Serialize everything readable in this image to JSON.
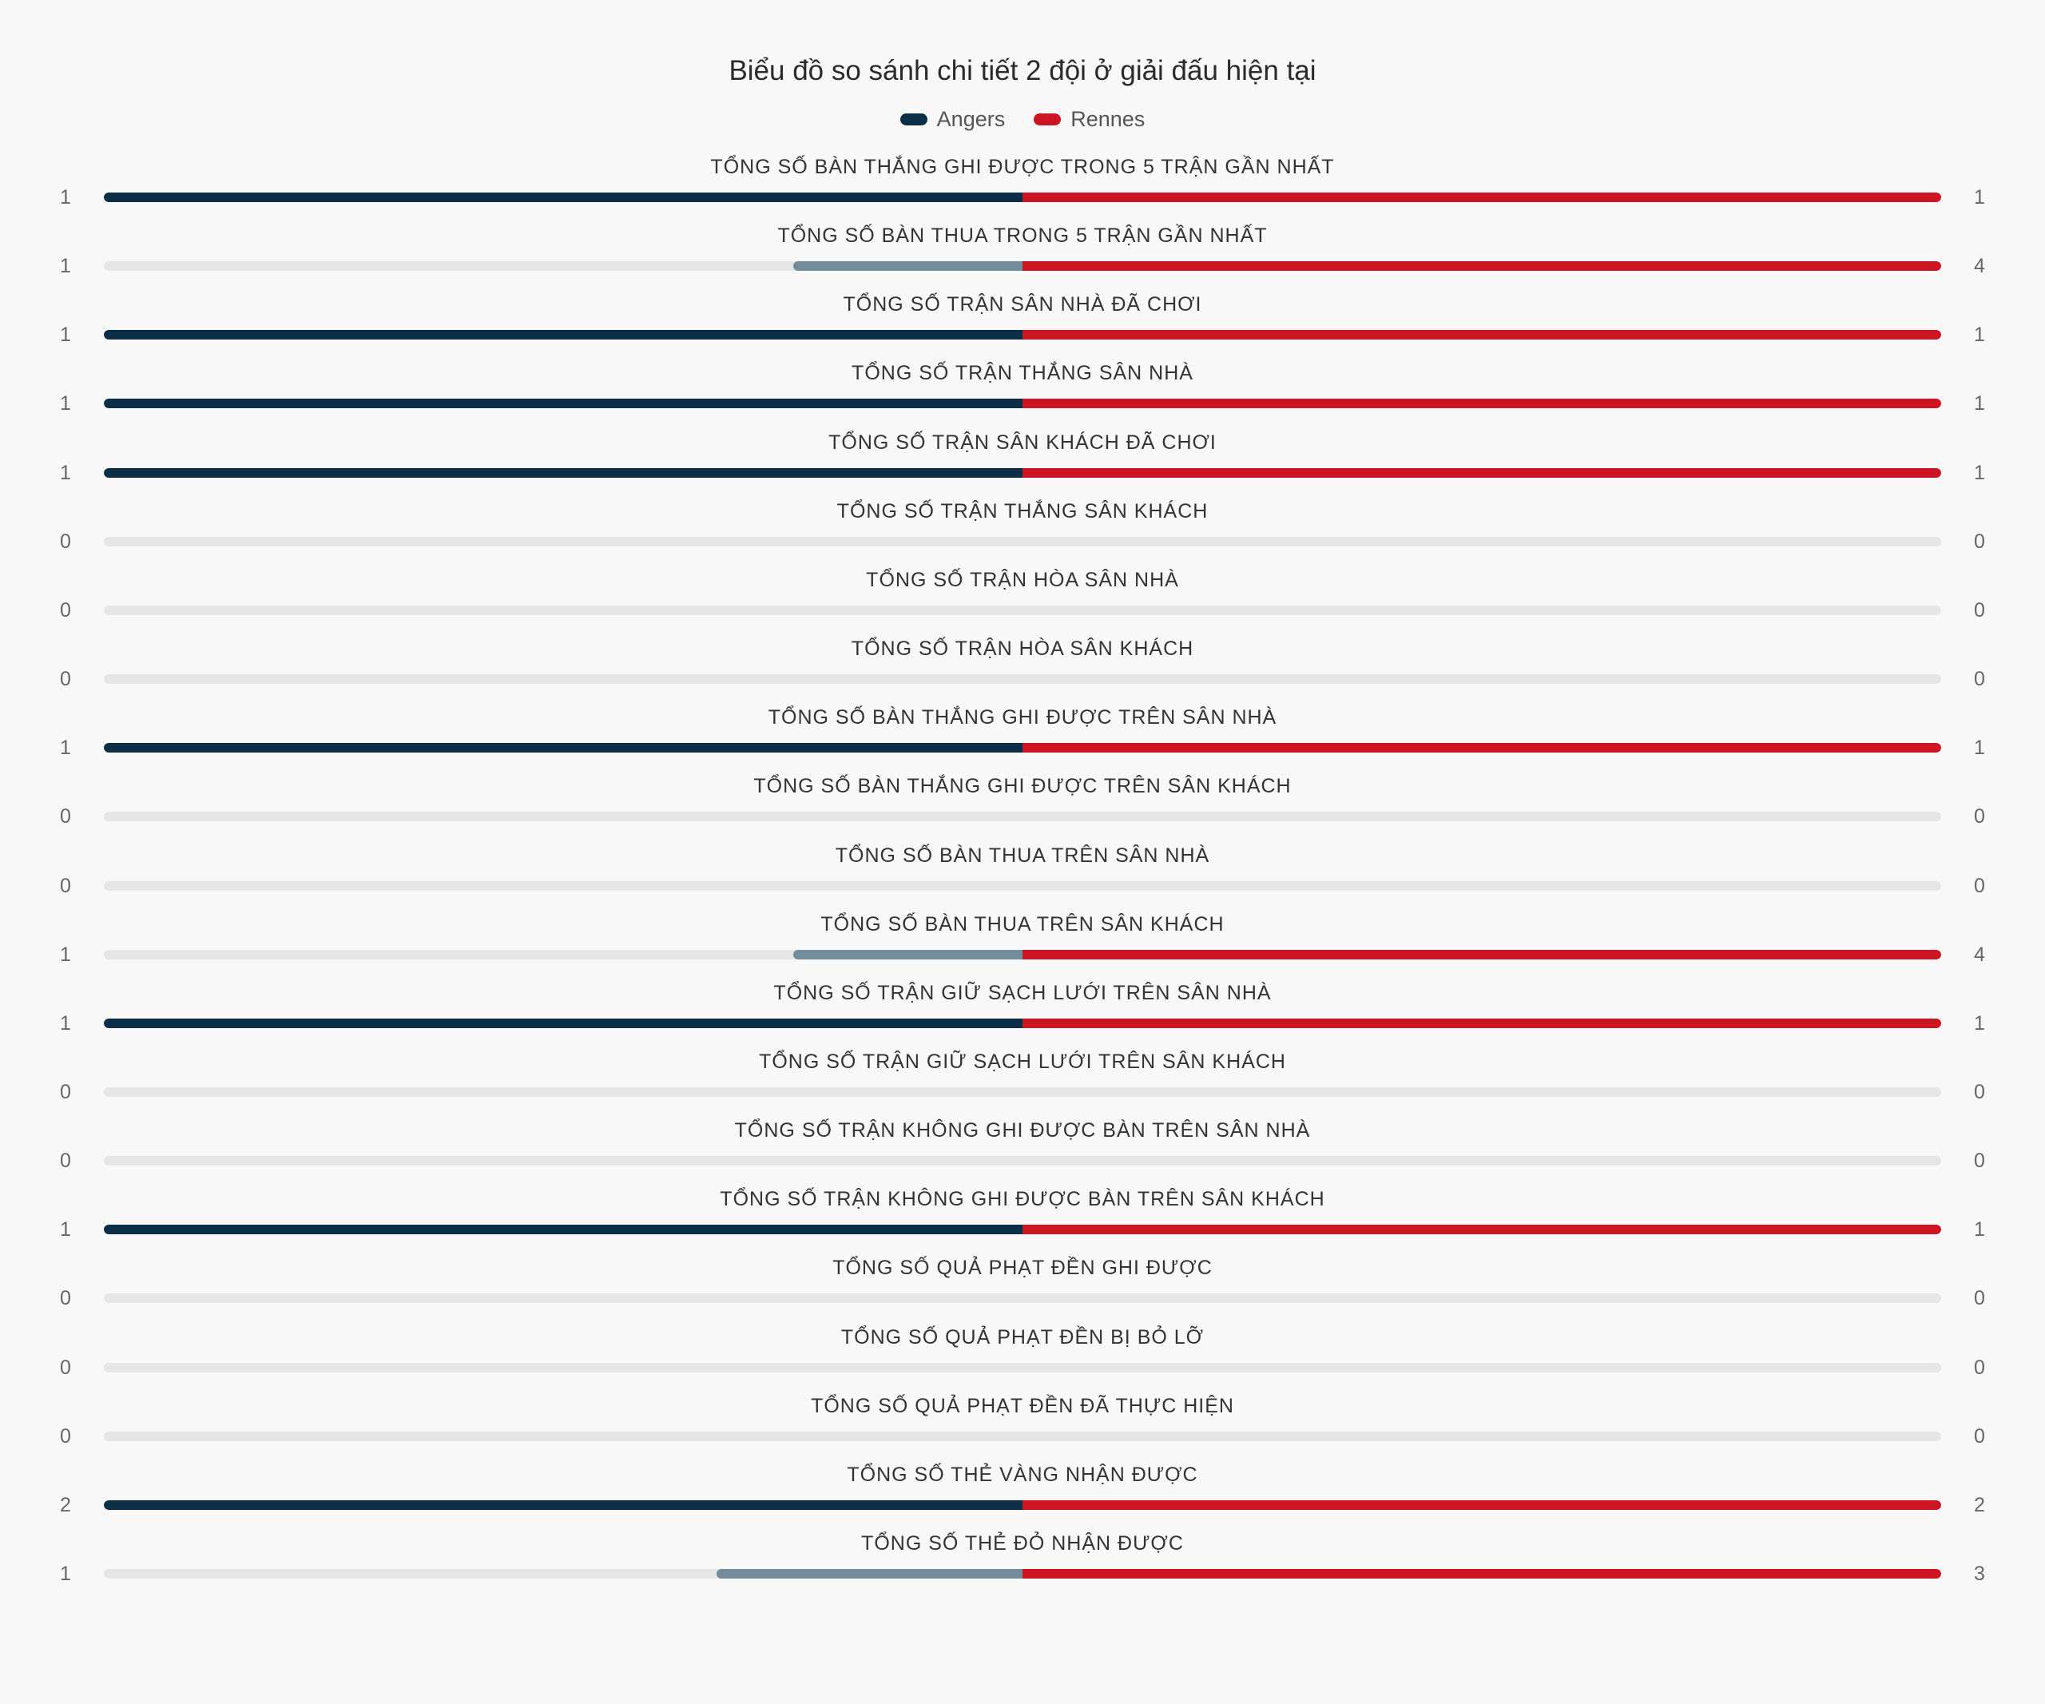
{
  "title": "Biểu đồ so sánh chi tiết 2 đội ở giải đấu hiện tại",
  "chart_data": {
    "type": "bar",
    "title": "Biểu đồ so sánh chi tiết 2 đội ở giải đấu hiện tại",
    "legend_position": "top-center",
    "series": [
      {
        "name": "Angers",
        "color": "#0b2e47",
        "dim_color": "#738c9b"
      },
      {
        "name": "Rennes",
        "color": "#cc1422"
      }
    ],
    "rows": [
      {
        "label": "TỔNG SỐ BÀN THẮNG GHI ĐƯỢC TRONG 5 TRẬN GẦN NHẤT",
        "left": 1,
        "right": 1
      },
      {
        "label": "TỔNG SỐ BÀN THUA TRONG 5 TRẬN GẦN NHẤT",
        "left": 1,
        "right": 4
      },
      {
        "label": "TỔNG SỐ TRẬN SÂN NHÀ ĐÃ CHƠI",
        "left": 1,
        "right": 1
      },
      {
        "label": "TỔNG SỐ TRẬN THẮNG SÂN NHÀ",
        "left": 1,
        "right": 1
      },
      {
        "label": "TỔNG SỐ TRẬN SÂN KHÁCH ĐÃ CHƠI",
        "left": 1,
        "right": 1
      },
      {
        "label": "TỔNG SỐ TRẬN THẮNG SÂN KHÁCH",
        "left": 0,
        "right": 0
      },
      {
        "label": "TỔNG SỐ TRẬN HÒA SÂN NHÀ",
        "left": 0,
        "right": 0
      },
      {
        "label": "TỔNG SỐ TRẬN HÒA SÂN KHÁCH",
        "left": 0,
        "right": 0
      },
      {
        "label": "TỔNG SỐ BÀN THẮNG GHI ĐƯỢC TRÊN SÂN NHÀ",
        "left": 1,
        "right": 1
      },
      {
        "label": "TỔNG SỐ BÀN THẮNG GHI ĐƯỢC TRÊN SÂN KHÁCH",
        "left": 0,
        "right": 0
      },
      {
        "label": "TỔNG SỐ BÀN THUA TRÊN SÂN NHÀ",
        "left": 0,
        "right": 0
      },
      {
        "label": "TỔNG SỐ BÀN THUA TRÊN SÂN KHÁCH",
        "left": 1,
        "right": 4
      },
      {
        "label": "TỔNG SỐ TRẬN GIỮ SẠCH LƯỚI TRÊN SÂN NHÀ",
        "left": 1,
        "right": 1
      },
      {
        "label": "TỔNG SỐ TRẬN GIỮ SẠCH LƯỚI TRÊN SÂN KHÁCH",
        "left": 0,
        "right": 0
      },
      {
        "label": "TỔNG SỐ TRẬN KHÔNG GHI ĐƯỢC BÀN TRÊN SÂN NHÀ",
        "left": 0,
        "right": 0
      },
      {
        "label": "TỔNG SỐ TRẬN KHÔNG GHI ĐƯỢC BÀN TRÊN SÂN KHÁCH",
        "left": 1,
        "right": 1
      },
      {
        "label": "TỔNG SỐ QUẢ PHẠT ĐỀN GHI ĐƯỢC",
        "left": 0,
        "right": 0
      },
      {
        "label": "TỔNG SỐ QUẢ PHẠT ĐỀN BỊ BỎ LỠ",
        "left": 0,
        "right": 0
      },
      {
        "label": "TỔNG SỐ QUẢ PHẠT ĐỀN ĐÃ THỰC HIỆN",
        "left": 0,
        "right": 0
      },
      {
        "label": "TỔNG SỐ THẺ VÀNG NHẬN ĐƯỢC",
        "left": 2,
        "right": 2
      },
      {
        "label": "TỔNG SỐ THẺ ĐỎ NHẬN ĐƯỢC",
        "left": 1,
        "right": 3
      }
    ]
  }
}
